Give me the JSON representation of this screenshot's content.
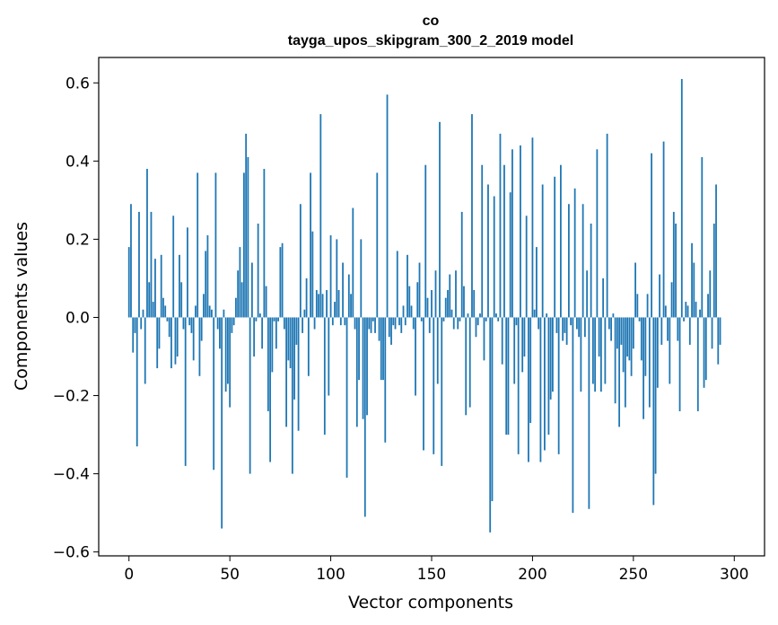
{
  "chart_data": {
    "type": "bar",
    "title_lines": [
      "co",
      "tayga_upos_skipgram_300_2_2019 model"
    ],
    "xlabel": "Vector components",
    "ylabel": "Components values",
    "xlim": [
      -15,
      315
    ],
    "ylim": [
      -0.61,
      0.665
    ],
    "x_ticks": [
      0,
      50,
      100,
      150,
      200,
      250,
      300
    ],
    "y_ticks": [
      -0.6,
      -0.4,
      -0.2,
      0.0,
      0.2,
      0.4,
      0.6
    ],
    "y_tick_labels": [
      "−0.6",
      "−0.4",
      "−0.2",
      "0.0",
      "0.2",
      "0.4",
      "0.6"
    ],
    "bar_color": "#1f77b4",
    "values": [
      0.18,
      0.29,
      -0.09,
      -0.04,
      -0.33,
      0.27,
      -0.03,
      0.02,
      -0.17,
      0.38,
      0.09,
      0.27,
      0.04,
      0.15,
      -0.13,
      -0.08,
      0.16,
      0.05,
      0.03,
      -0.01,
      -0.05,
      -0.13,
      0.26,
      -0.12,
      -0.1,
      0.16,
      0.09,
      -0.03,
      -0.38,
      0.23,
      -0.02,
      -0.04,
      -0.11,
      0.03,
      0.37,
      -0.15,
      -0.06,
      0.06,
      0.17,
      0.21,
      0.03,
      0.02,
      -0.39,
      0.37,
      -0.03,
      -0.08,
      -0.54,
      0.02,
      -0.19,
      -0.17,
      -0.23,
      -0.04,
      -0.02,
      0.05,
      0.12,
      0.18,
      0.09,
      0.37,
      0.47,
      0.41,
      -0.4,
      0.14,
      -0.1,
      -0.01,
      0.24,
      0.01,
      -0.08,
      0.38,
      0.08,
      -0.24,
      -0.37,
      -0.14,
      -0.01,
      -0.08,
      -0.01,
      0.18,
      0.19,
      -0.03,
      -0.28,
      -0.11,
      -0.13,
      -0.4,
      -0.21,
      -0.07,
      -0.29,
      0.29,
      -0.04,
      0.02,
      0.1,
      -0.15,
      0.37,
      0.22,
      -0.03,
      0.07,
      0.06,
      0.52,
      0.06,
      -0.3,
      0.07,
      -0.2,
      0.21,
      -0.02,
      0.04,
      0.2,
      0.07,
      -0.02,
      0.14,
      -0.02,
      -0.41,
      0.11,
      0.06,
      0.28,
      -0.03,
      -0.28,
      -0.16,
      0.2,
      -0.26,
      -0.51,
      -0.25,
      -0.03,
      -0.04,
      -0.01,
      -0.04,
      0.37,
      -0.06,
      -0.16,
      -0.16,
      -0.32,
      0.57,
      -0.05,
      -0.07,
      -0.02,
      -0.03,
      0.17,
      -0.02,
      -0.04,
      0.03,
      -0.02,
      0.16,
      0.08,
      0.03,
      -0.03,
      -0.2,
      0.09,
      0.14,
      -0.01,
      -0.34,
      0.39,
      0.05,
      -0.04,
      0.07,
      -0.35,
      0.12,
      -0.17,
      0.5,
      -0.38,
      -0.01,
      0.05,
      0.07,
      0.11,
      0.02,
      -0.03,
      0.12,
      -0.03,
      -0.01,
      0.27,
      0.08,
      -0.25,
      0.01,
      -0.23,
      0.52,
      0.07,
      -0.05,
      -0.02,
      0.01,
      0.39,
      -0.11,
      -0.01,
      0.34,
      -0.55,
      -0.47,
      0.31,
      0.01,
      -0.01,
      0.47,
      -0.12,
      0.39,
      -0.3,
      -0.3,
      0.32,
      0.43,
      -0.17,
      -0.02,
      -0.35,
      0.44,
      -0.14,
      -0.1,
      0.26,
      -0.37,
      -0.27,
      0.46,
      0.02,
      0.18,
      -0.03,
      -0.37,
      0.34,
      -0.34,
      0.01,
      -0.3,
      -0.21,
      -0.19,
      0.36,
      -0.04,
      -0.35,
      0.39,
      -0.06,
      -0.04,
      -0.07,
      0.29,
      -0.02,
      -0.5,
      0.33,
      -0.03,
      -0.05,
      -0.19,
      0.29,
      -0.05,
      0.12,
      -0.49,
      0.24,
      -0.17,
      -0.19,
      0.43,
      -0.1,
      -0.19,
      0.1,
      -0.17,
      0.47,
      -0.03,
      -0.06,
      0.01,
      -0.22,
      -0.08,
      -0.28,
      -0.07,
      -0.14,
      -0.23,
      -0.1,
      -0.11,
      -0.15,
      -0.08,
      0.14,
      0.06,
      -0.01,
      -0.11,
      -0.26,
      -0.15,
      0.06,
      -0.23,
      0.42,
      -0.48,
      -0.4,
      -0.18,
      0.11,
      -0.07,
      0.45,
      0.03,
      -0.06,
      -0.17,
      0.09,
      0.27,
      0.24,
      -0.06,
      -0.24,
      0.61,
      -0.01,
      0.04,
      0.03,
      -0.07,
      0.19,
      0.14,
      0.04,
      -0.24,
      0.02,
      0.41,
      -0.18,
      -0.16,
      0.06,
      0.12,
      -0.08,
      0.24,
      0.34,
      -0.12,
      -0.07
    ]
  }
}
